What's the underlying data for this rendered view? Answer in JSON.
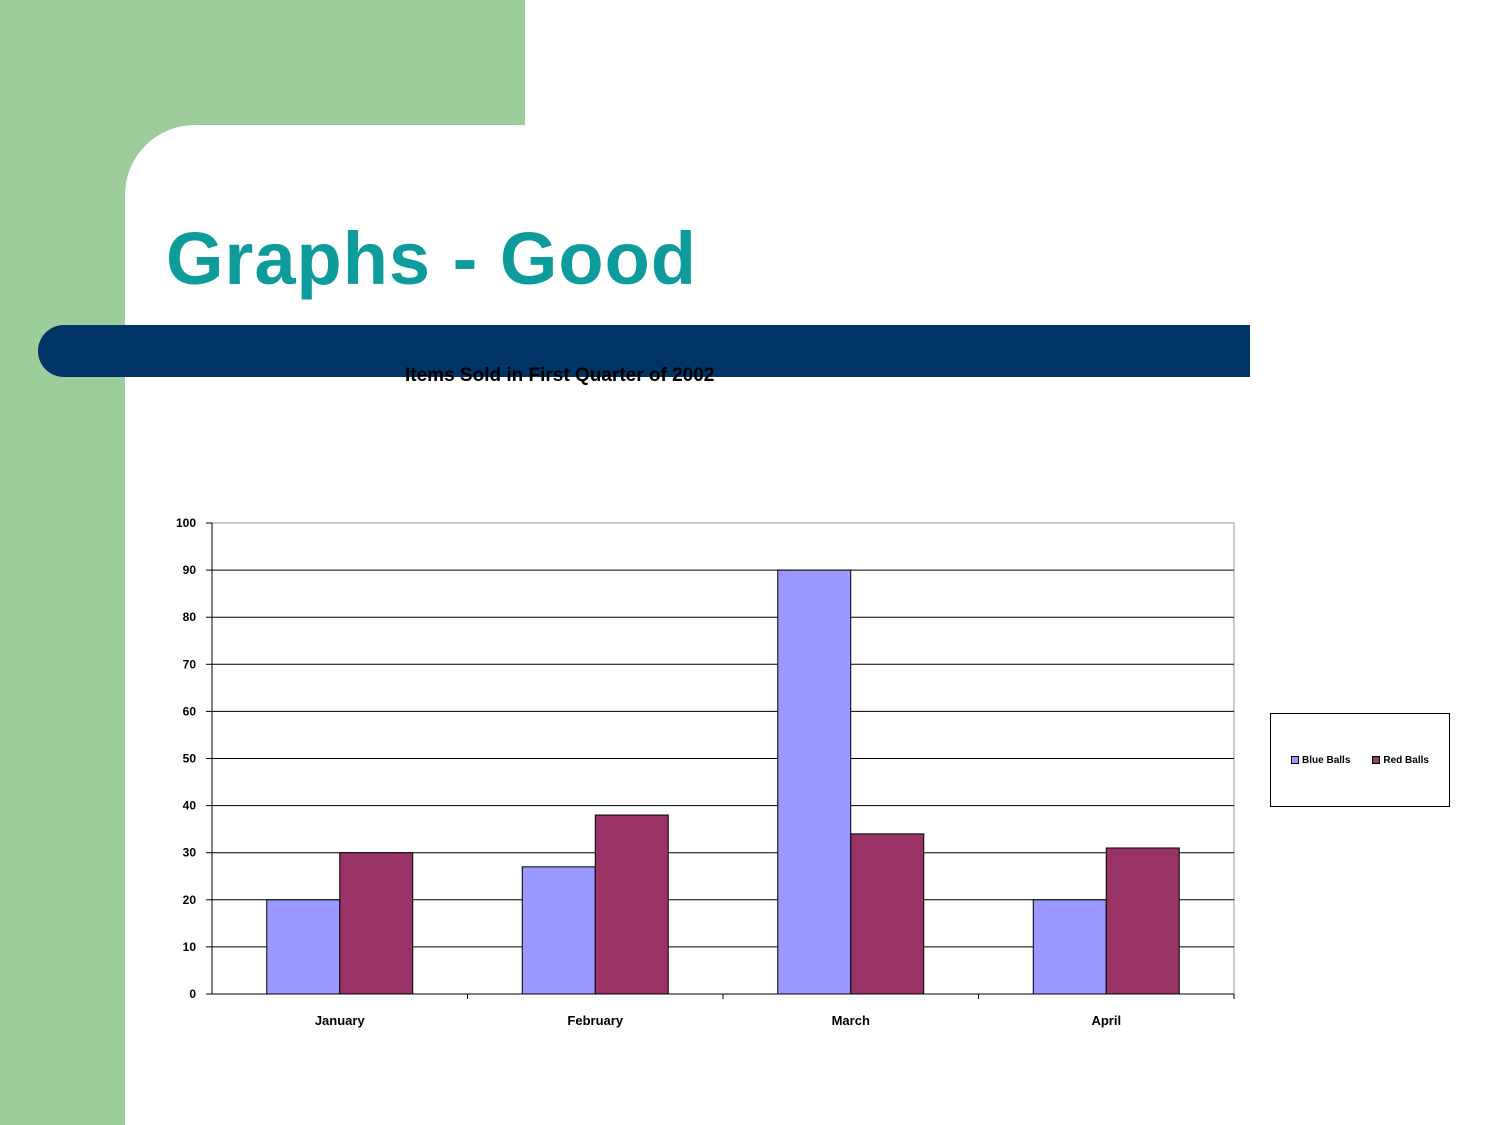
{
  "slide": {
    "title": "Graphs - Good",
    "colors": {
      "background": "#9dcd9a",
      "title": "#0e9b9b",
      "bar": "#003366"
    }
  },
  "chart_data": {
    "type": "bar",
    "title": "Items Sold in First Quarter of 2002",
    "xlabel": "",
    "ylabel": "",
    "categories": [
      "January",
      "February",
      "March",
      "April"
    ],
    "series": [
      {
        "name": "Blue Balls",
        "color": "#9999ff",
        "values": [
          20,
          27,
          90,
          20
        ]
      },
      {
        "name": "Red Balls",
        "color": "#993366",
        "values": [
          30,
          38,
          34,
          31
        ]
      }
    ],
    "ylim": [
      0,
      100
    ],
    "yticks": [
      0,
      10,
      20,
      30,
      40,
      50,
      60,
      70,
      80,
      90,
      100
    ],
    "grid": true,
    "legend": "right"
  }
}
